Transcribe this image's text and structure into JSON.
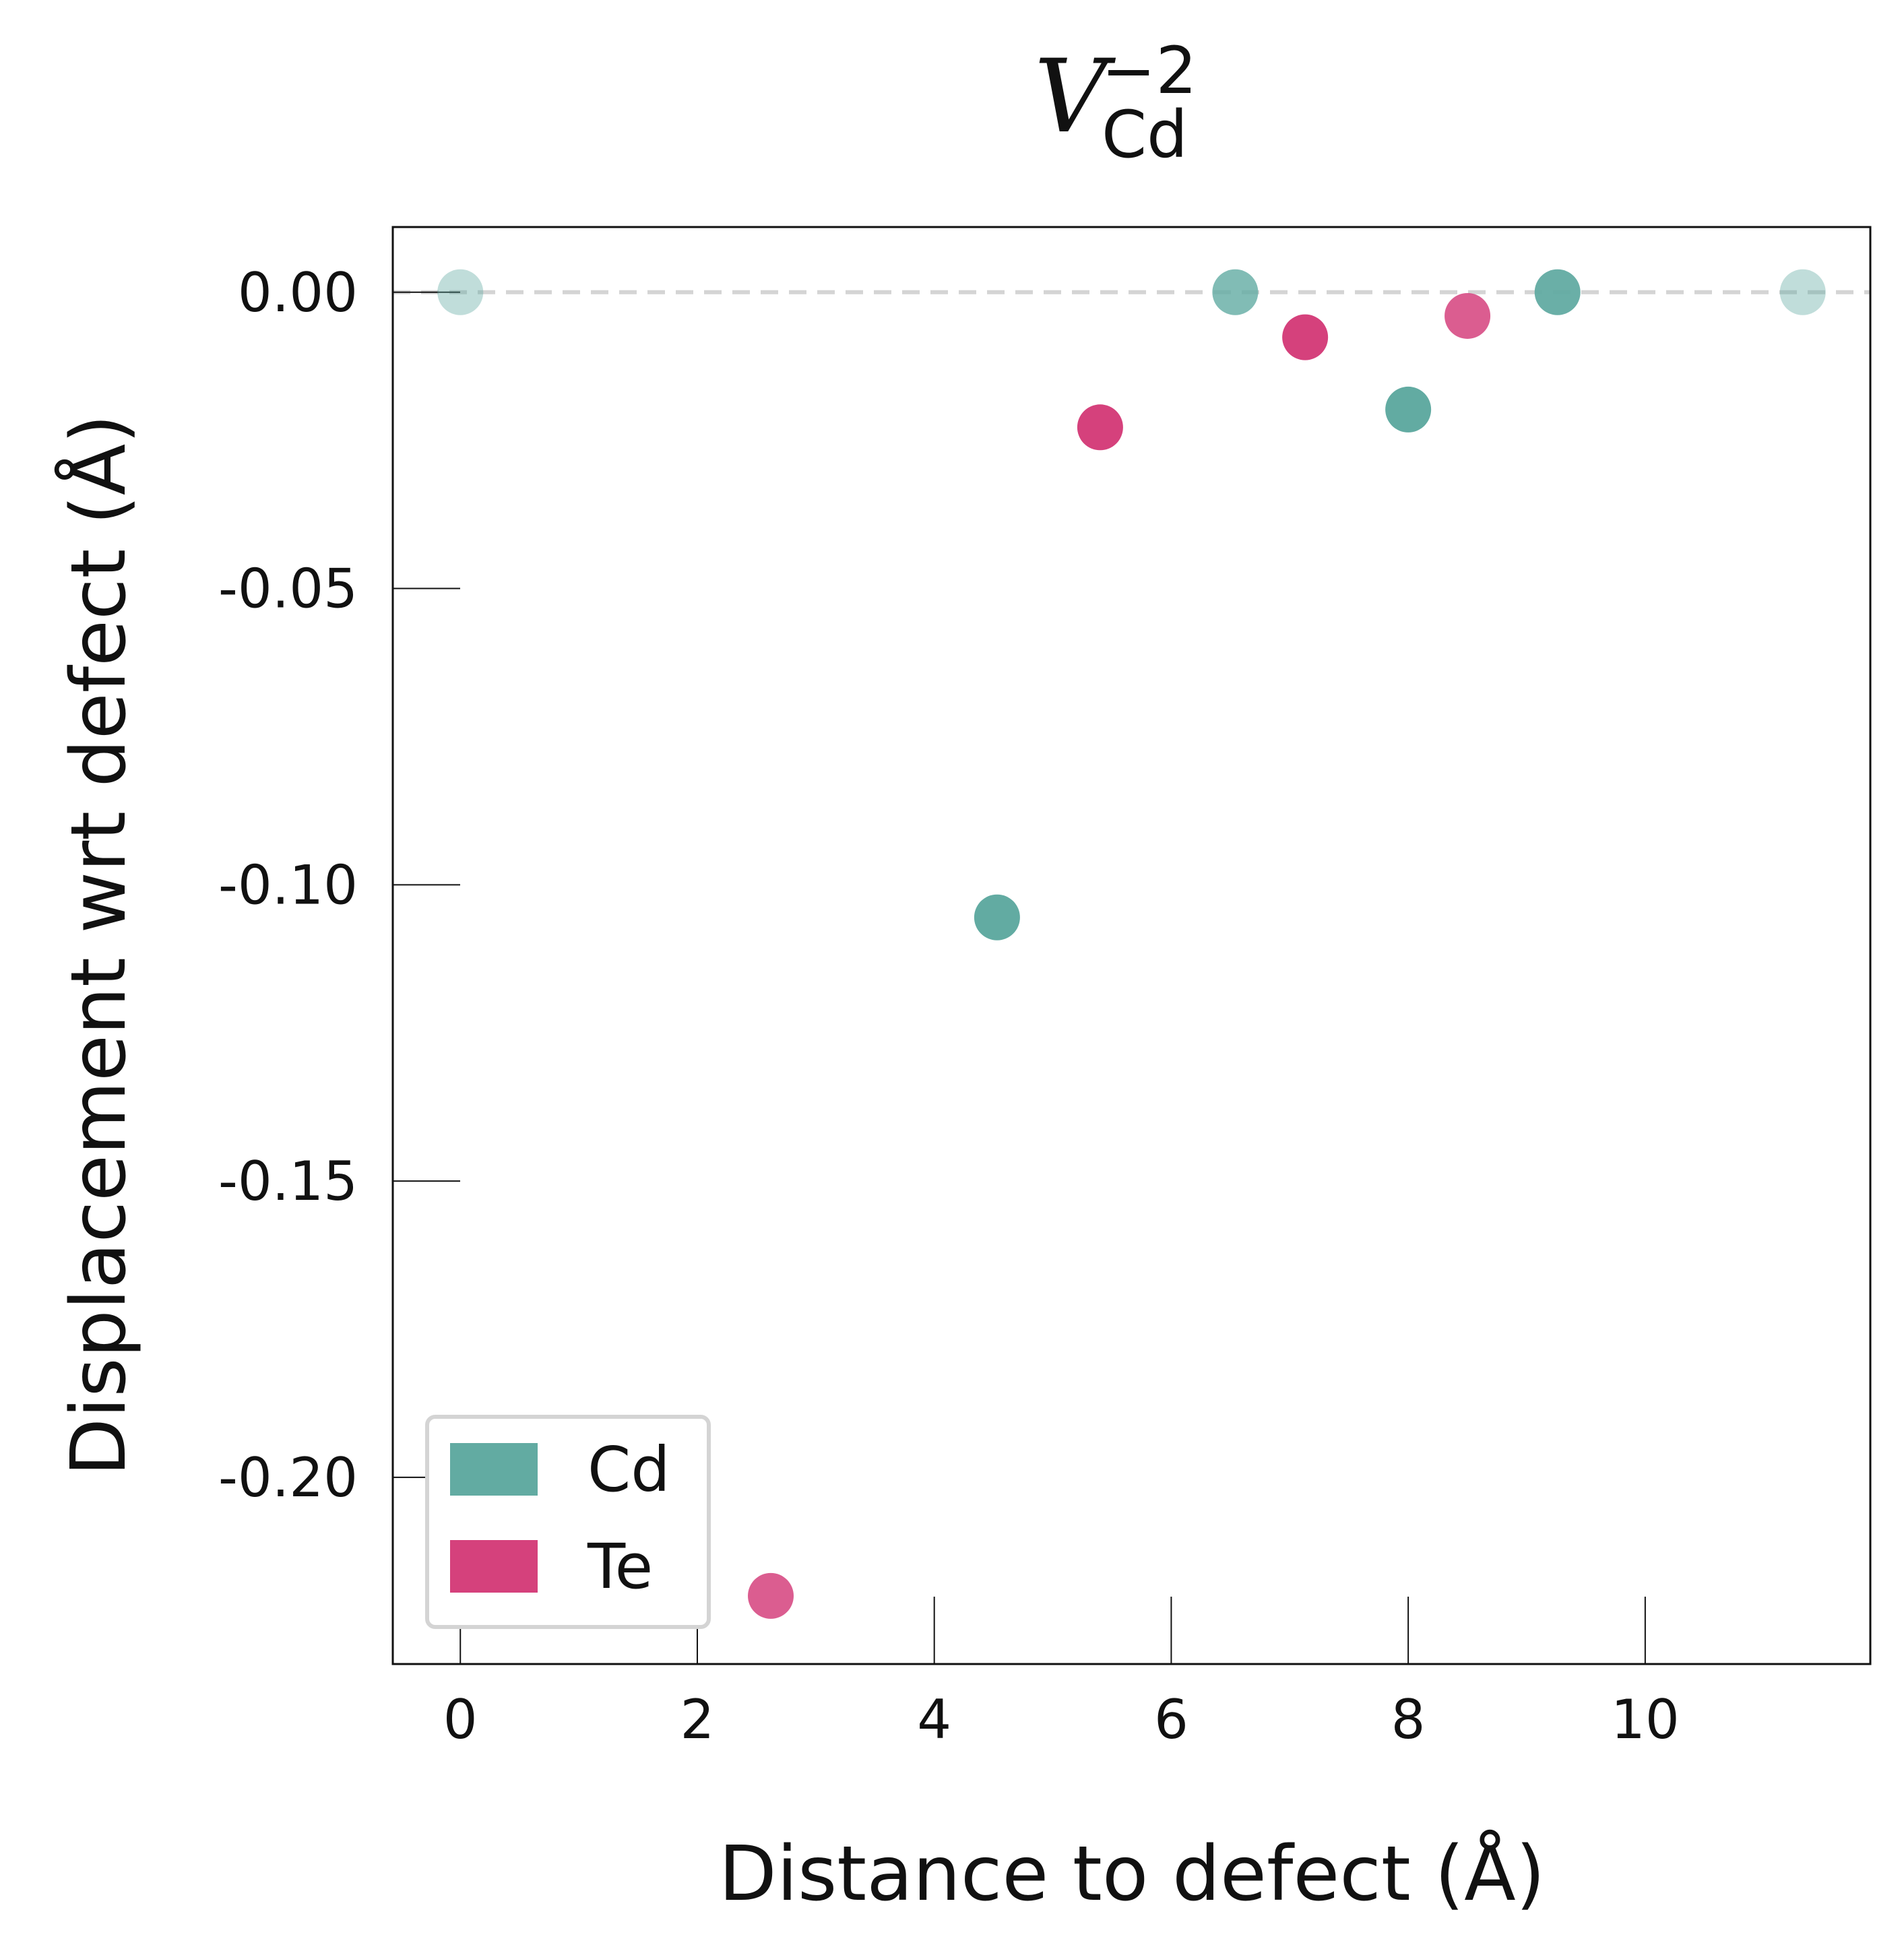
{
  "chart_data": {
    "type": "scatter",
    "title": {
      "main": "V",
      "superscript": "−2",
      "subscript": "Cd"
    },
    "xlabel": "Distance to defect (Å)",
    "ylabel": "Displacement wrt defect (Å)",
    "xlim": [
      -0.57,
      11.9
    ],
    "ylim": [
      -0.2315,
      0.011
    ],
    "x_ticks": [
      0,
      2,
      4,
      6,
      8,
      10
    ],
    "x_tick_labels": [
      "0",
      "2",
      "4",
      "6",
      "8",
      "10"
    ],
    "y_ticks": [
      0.0,
      -0.05,
      -0.1,
      -0.15,
      -0.2
    ],
    "y_tick_labels": [
      "0.00",
      "-0.05",
      "-0.10",
      "-0.15",
      "-0.20"
    ],
    "reference_line": {
      "y": 0.0,
      "style": "dashed",
      "color": "#d4d4d4"
    },
    "grid": false,
    "legend": {
      "position": "bottom-left"
    },
    "series": [
      {
        "name": "Cd",
        "color": "#62aba2",
        "points": [
          {
            "x": 0.0,
            "y": 0.0,
            "opacity": 0.4
          },
          {
            "x": 4.53,
            "y": -0.1055,
            "opacity": 1.0
          },
          {
            "x": 6.54,
            "y": 0.0,
            "opacity": 0.8
          },
          {
            "x": 8.0,
            "y": -0.0198,
            "opacity": 1.0
          },
          {
            "x": 9.26,
            "y": 0.0,
            "opacity": 0.95
          },
          {
            "x": 11.33,
            "y": 0.0,
            "opacity": 0.4
          }
        ]
      },
      {
        "name": "Te",
        "color": "#d5417c",
        "points": [
          {
            "x": 2.62,
            "y": -0.22,
            "opacity": 0.85
          },
          {
            "x": 5.4,
            "y": -0.0228,
            "opacity": 1.0
          },
          {
            "x": 7.13,
            "y": -0.0076,
            "opacity": 1.0
          },
          {
            "x": 8.5,
            "y": -0.004,
            "opacity": 0.85
          }
        ]
      }
    ]
  }
}
